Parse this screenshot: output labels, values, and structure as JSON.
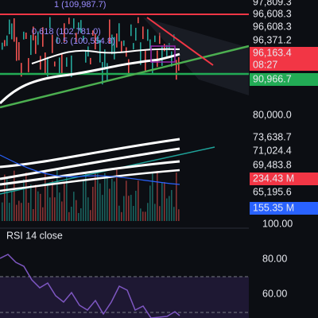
{
  "price_axis": [
    "97,809.3",
    "96,608.3",
    "96,608.3",
    "96,371.2",
    "80,000.0",
    "73,638.7",
    "71,024.4",
    "69,483.8",
    "65,195.6"
  ],
  "badges": {
    "last_price": "96,163.4",
    "countdown": "08:27",
    "level": "90,966.7",
    "volume_a": "234.43 M",
    "volume_b": "155.35 M"
  },
  "fib_labels": [
    "1 (109,987.7)",
    "0.618 (102,781.0)",
    "0.5 (100,554.8)"
  ],
  "rsi": {
    "title": "RSI 14 close",
    "axis": [
      "100.00",
      "80.00",
      "60.00"
    ]
  }
}
